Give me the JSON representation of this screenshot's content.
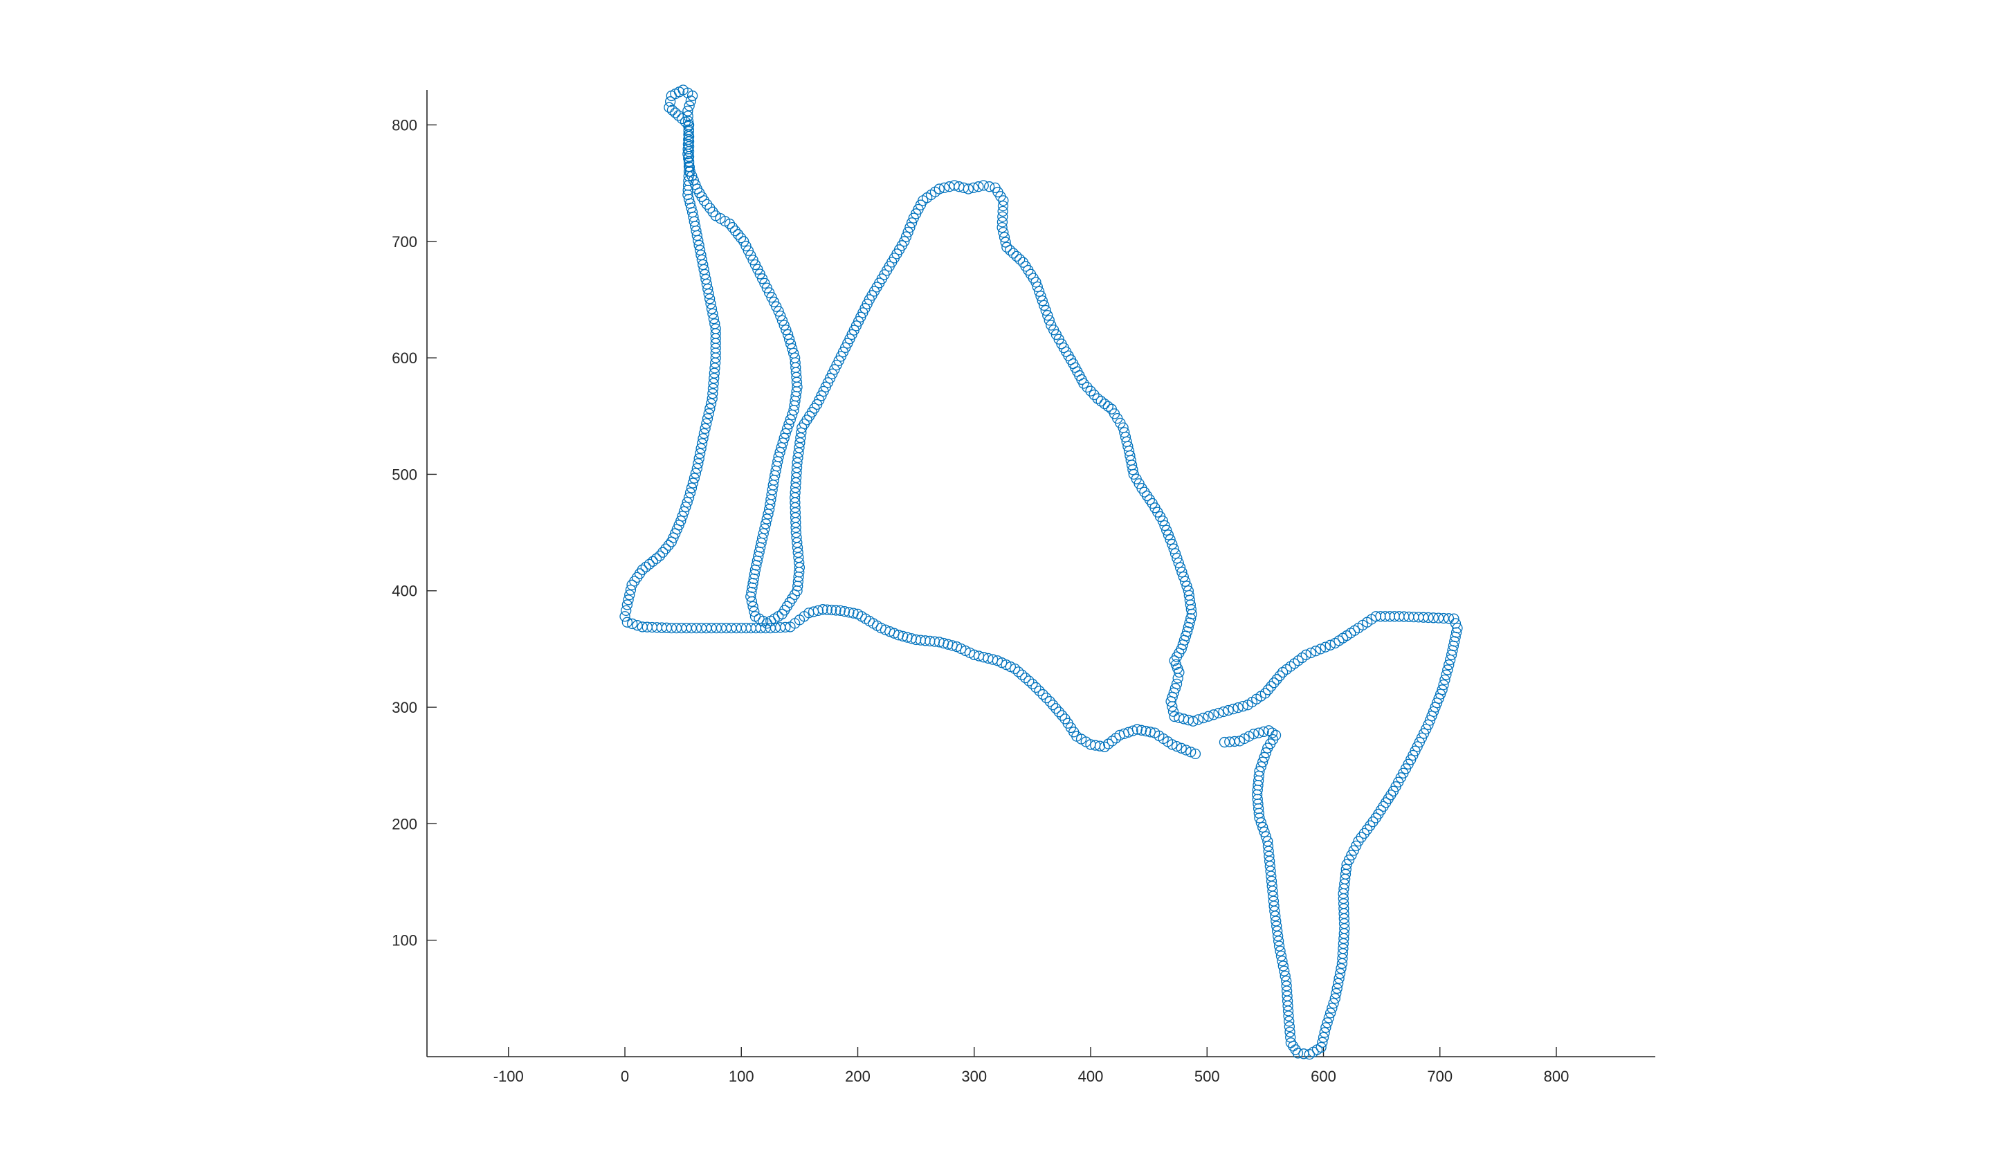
{
  "chart_data": {
    "type": "scatter",
    "title": "",
    "xlabel": "",
    "ylabel": "",
    "xlim": [
      -170,
      885
    ],
    "ylim": [
      0,
      830
    ],
    "xticks": [
      -100,
      0,
      100,
      200,
      300,
      400,
      500,
      600,
      700,
      800
    ],
    "yticks": [
      100,
      200,
      300,
      400,
      500,
      600,
      700,
      800
    ],
    "xtick_labels": [
      "-100",
      "0",
      "100",
      "200",
      "300",
      "400",
      "500",
      "600",
      "700",
      "800"
    ],
    "ytick_labels": [
      "100",
      "200",
      "300",
      "400",
      "500",
      "600",
      "700",
      "800"
    ],
    "grid": false,
    "legend": false,
    "marker": "open-circle",
    "color": "#0072BD",
    "series": [
      {
        "path": [
          [
            490,
            260
          ],
          [
            470,
            268
          ],
          [
            455,
            278
          ],
          [
            440,
            281
          ],
          [
            425,
            276
          ],
          [
            412,
            266
          ],
          [
            400,
            268
          ],
          [
            388,
            275
          ],
          [
            378,
            290
          ],
          [
            365,
            305
          ],
          [
            350,
            320
          ],
          [
            335,
            333
          ],
          [
            320,
            340
          ],
          [
            300,
            345
          ],
          [
            285,
            352
          ],
          [
            270,
            356
          ],
          [
            250,
            358
          ],
          [
            235,
            362
          ],
          [
            220,
            368
          ],
          [
            210,
            374
          ],
          [
            200,
            380
          ],
          [
            185,
            383
          ],
          [
            170,
            384
          ],
          [
            158,
            381
          ],
          [
            150,
            375
          ],
          [
            142,
            369
          ],
          [
            125,
            368
          ],
          [
            100,
            368
          ],
          [
            70,
            368
          ],
          [
            40,
            368
          ],
          [
            15,
            369
          ],
          [
            2,
            373
          ],
          [
            0,
            378
          ],
          [
            2,
            388
          ],
          [
            6,
            405
          ],
          [
            15,
            418
          ],
          [
            30,
            430
          ],
          [
            40,
            442
          ],
          [
            48,
            460
          ],
          [
            55,
            480
          ],
          [
            62,
            505
          ],
          [
            68,
            535
          ],
          [
            75,
            565
          ],
          [
            78,
            600
          ],
          [
            78,
            625
          ],
          [
            72,
            655
          ],
          [
            67,
            680
          ],
          [
            62,
            705
          ],
          [
            58,
            725
          ],
          [
            54,
            740
          ],
          [
            55,
            760
          ],
          [
            55,
            790
          ],
          [
            54,
            812
          ],
          [
            58,
            825
          ],
          [
            50,
            830
          ],
          [
            40,
            825
          ],
          [
            38,
            815
          ],
          [
            46,
            808
          ],
          [
            55,
            800
          ],
          [
            54,
            775
          ],
          [
            56,
            760
          ],
          [
            62,
            745
          ],
          [
            68,
            735
          ],
          [
            78,
            722
          ],
          [
            90,
            715
          ],
          [
            102,
            700
          ],
          [
            112,
            680
          ],
          [
            122,
            660
          ],
          [
            132,
            640
          ],
          [
            140,
            620
          ],
          [
            146,
            600
          ],
          [
            148,
            575
          ],
          [
            145,
            555
          ],
          [
            138,
            535
          ],
          [
            132,
            515
          ],
          [
            128,
            495
          ],
          [
            124,
            470
          ],
          [
            118,
            445
          ],
          [
            112,
            418
          ],
          [
            108,
            395
          ],
          [
            112,
            378
          ],
          [
            122,
            372
          ],
          [
            135,
            380
          ],
          [
            148,
            400
          ],
          [
            150,
            420
          ],
          [
            147,
            450
          ],
          [
            146,
            480
          ],
          [
            148,
            510
          ],
          [
            152,
            540
          ],
          [
            165,
            560
          ],
          [
            180,
            590
          ],
          [
            195,
            620
          ],
          [
            210,
            650
          ],
          [
            225,
            675
          ],
          [
            240,
            700
          ],
          [
            248,
            720
          ],
          [
            256,
            735
          ],
          [
            270,
            745
          ],
          [
            283,
            748
          ],
          [
            295,
            745
          ],
          [
            308,
            748
          ],
          [
            318,
            746
          ],
          [
            325,
            735
          ],
          [
            324,
            712
          ],
          [
            328,
            695
          ],
          [
            342,
            682
          ],
          [
            353,
            665
          ],
          [
            360,
            645
          ],
          [
            366,
            628
          ],
          [
            375,
            612
          ],
          [
            385,
            595
          ],
          [
            394,
            578
          ],
          [
            406,
            565
          ],
          [
            418,
            556
          ],
          [
            428,
            540
          ],
          [
            433,
            520
          ],
          [
            437,
            500
          ],
          [
            444,
            488
          ],
          [
            453,
            475
          ],
          [
            462,
            460
          ],
          [
            470,
            440
          ],
          [
            477,
            420
          ],
          [
            484,
            400
          ],
          [
            487,
            380
          ],
          [
            483,
            365
          ],
          [
            478,
            350
          ],
          [
            472,
            340
          ],
          [
            476,
            330
          ],
          [
            474,
            320
          ],
          [
            469,
            305
          ],
          [
            472,
            292
          ],
          [
            488,
            288
          ],
          [
            510,
            295
          ],
          [
            535,
            302
          ],
          [
            550,
            312
          ],
          [
            565,
            330
          ],
          [
            585,
            345
          ],
          [
            610,
            355
          ],
          [
            630,
            368
          ],
          [
            645,
            378
          ],
          [
            665,
            378
          ],
          [
            690,
            377
          ],
          [
            712,
            376
          ],
          [
            715,
            368
          ],
          [
            710,
            345
          ],
          [
            702,
            315
          ],
          [
            690,
            285
          ],
          [
            675,
            255
          ],
          [
            660,
            228
          ],
          [
            645,
            205
          ],
          [
            630,
            185
          ],
          [
            620,
            165
          ],
          [
            617,
            140
          ],
          [
            618,
            110
          ],
          [
            616,
            80
          ],
          [
            610,
            50
          ],
          [
            602,
            25
          ],
          [
            598,
            8
          ],
          [
            588,
            2
          ],
          [
            578,
            3
          ],
          [
            572,
            12
          ],
          [
            570,
            35
          ],
          [
            568,
            65
          ],
          [
            562,
            95
          ],
          [
            558,
            125
          ],
          [
            555,
            155
          ],
          [
            552,
            185
          ],
          [
            545,
            205
          ],
          [
            543,
            225
          ],
          [
            545,
            245
          ],
          [
            552,
            265
          ],
          [
            559,
            276
          ],
          [
            553,
            280
          ],
          [
            540,
            277
          ],
          [
            528,
            271
          ],
          [
            515,
            270
          ]
        ]
      }
    ]
  }
}
